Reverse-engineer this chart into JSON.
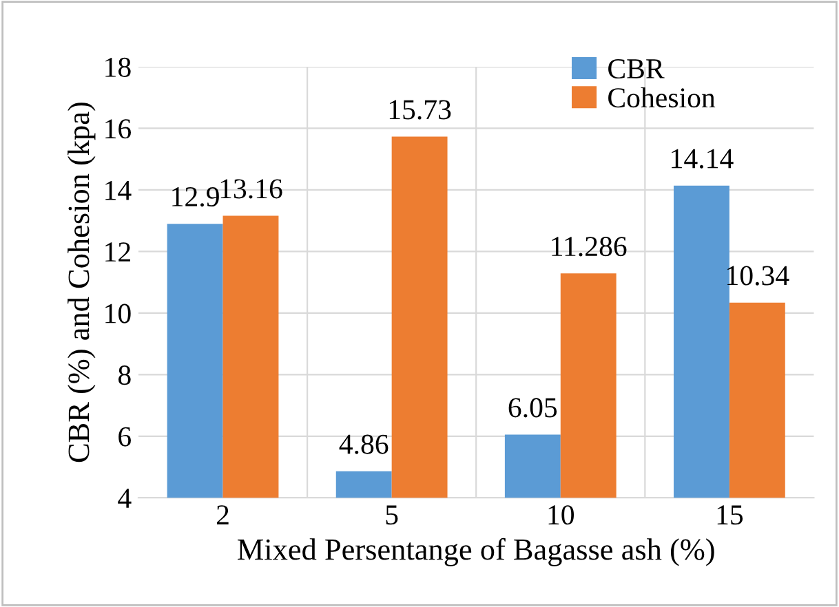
{
  "chart_data": {
    "type": "bar",
    "xlabel": "Mixed Persentange of Bagasse ash (%)",
    "ylabel": "CBR (%) and Cohesion (kpa)",
    "categories": [
      "2",
      "5",
      "10",
      "15"
    ],
    "series": [
      {
        "name": "CBR",
        "color": "#5b9bd5",
        "values": [
          12.9,
          4.86,
          6.05,
          14.14
        ]
      },
      {
        "name": "Cohesion",
        "color": "#ed7d31",
        "values": [
          13.16,
          15.73,
          11.286,
          10.34
        ]
      }
    ],
    "ylim": [
      4,
      18
    ],
    "yticks": [
      4,
      6,
      8,
      10,
      12,
      14,
      16,
      18
    ],
    "grid": true,
    "legend": "top right",
    "data_labels": true
  }
}
